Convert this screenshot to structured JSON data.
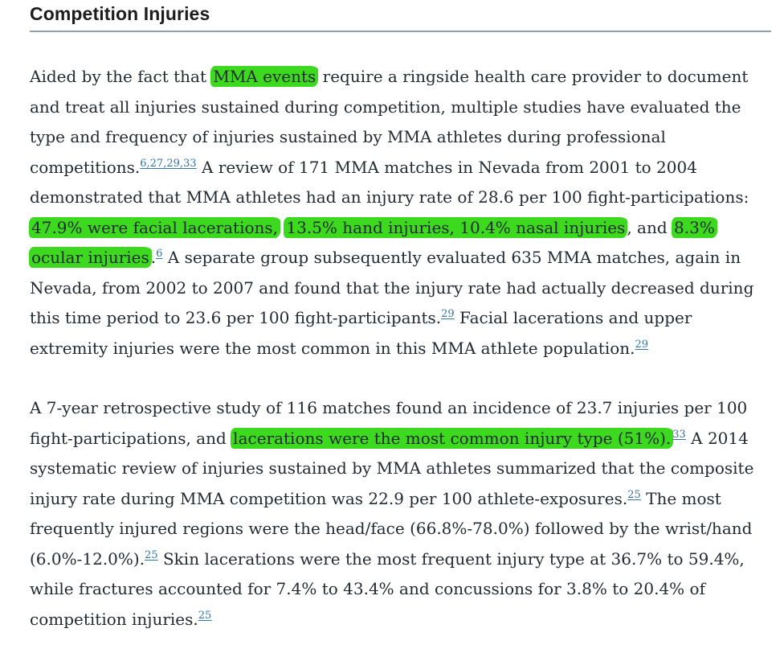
{
  "page": {
    "title": "Competition Injuries"
  },
  "colors": {
    "highlight_green": "#3cd91e",
    "reference_link_blue": "#33749f",
    "body_text": "#232a31",
    "heading_rule_gray": "#8fa0ab"
  },
  "paragraphs": [
    {
      "segments": [
        {
          "t": "Aided by the fact that "
        },
        {
          "t": "MMA events",
          "hl": true
        },
        {
          "t": " require a ringside health care provider to document and treat all injuries sustained during competition, multiple studies have evaluated the type and frequency of injuries sustained by MMA athletes during professional competitions."
        },
        {
          "refs": [
            "6",
            "27",
            "29",
            "33"
          ]
        },
        {
          "t": " A review of 171 MMA matches in Nevada from 2001 to 2004 demonstrated that MMA athletes had an injury rate of 28.6 per 100 fight-participations: "
        },
        {
          "t": "47.9% were facial lacerations,",
          "hl": true
        },
        {
          "t": " "
        },
        {
          "t": "13.5% hand injuries, 10.4% nasal injuries",
          "hl": true
        },
        {
          "t": ", and "
        },
        {
          "t": "8.3% ocular injuries",
          "hl": true
        },
        {
          "t": "."
        },
        {
          "refs": [
            "6"
          ]
        },
        {
          "t": " A separate group subsequently evaluated 635 MMA matches, again in Nevada, from 2002 to 2007 and found that the injury rate had actually decreased during this time period to 23.6 per 100 fight-participants."
        },
        {
          "refs": [
            "29"
          ]
        },
        {
          "t": " Facial lacerations and upper extremity injuries were the most common in this MMA athlete population."
        },
        {
          "refs": [
            "29"
          ]
        }
      ]
    },
    {
      "segments": [
        {
          "t": "A 7-year retrospective study of 116 matches found an incidence of 23.7 injuries per 100 fight-participations, and "
        },
        {
          "t": "lacerations were the most common injury type (51%).",
          "hl": true
        },
        {
          "refs": [
            "33"
          ]
        },
        {
          "t": " A 2014 systematic review of injuries sustained by MMA athletes summarized that the composite injury rate during MMA competition was 22.9 per 100 athlete-exposures."
        },
        {
          "refs": [
            "25"
          ]
        },
        {
          "t": " The most frequently injured regions were the head/face (66.8%-78.0%) followed by the wrist/hand (6.0%-12.0%)."
        },
        {
          "refs": [
            "25"
          ]
        },
        {
          "t": " Skin lacerations were the most frequent injury type at 36.7% to 59.4%, while fractures accounted for 7.4% to 43.4% and concussions for 3.8% to 20.4% of competition injuries."
        },
        {
          "refs": [
            "25"
          ]
        }
      ]
    }
  ]
}
